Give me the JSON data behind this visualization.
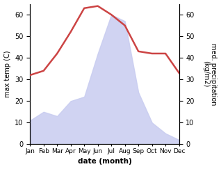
{
  "months": [
    "Jan",
    "Feb",
    "Mar",
    "Apr",
    "May",
    "Jun",
    "Jul",
    "Aug",
    "Sep",
    "Oct",
    "Nov",
    "Dec"
  ],
  "precipitation": [
    11,
    15,
    13,
    20,
    22,
    42,
    60,
    57,
    24,
    10,
    5,
    2
  ],
  "temperature": [
    32,
    34,
    42,
    52,
    63,
    64,
    60,
    55,
    43,
    42,
    42,
    33
  ],
  "temp_color": "#cc4444",
  "precip_fill_color": "#c8ccf0",
  "precip_fill_alpha": 0.85,
  "ylabel_left": "max temp (C)",
  "ylabel_right": "med. precipitation\n(kg/m2)",
  "xlabel": "date (month)",
  "ylim_left": [
    0,
    65
  ],
  "ylim_right": [
    0,
    65
  ],
  "yticks_left": [
    0,
    10,
    20,
    30,
    40,
    50,
    60
  ],
  "yticks_right": [
    0,
    10,
    20,
    30,
    40,
    50,
    60
  ],
  "temp_linewidth": 1.8,
  "background_color": "#ffffff"
}
